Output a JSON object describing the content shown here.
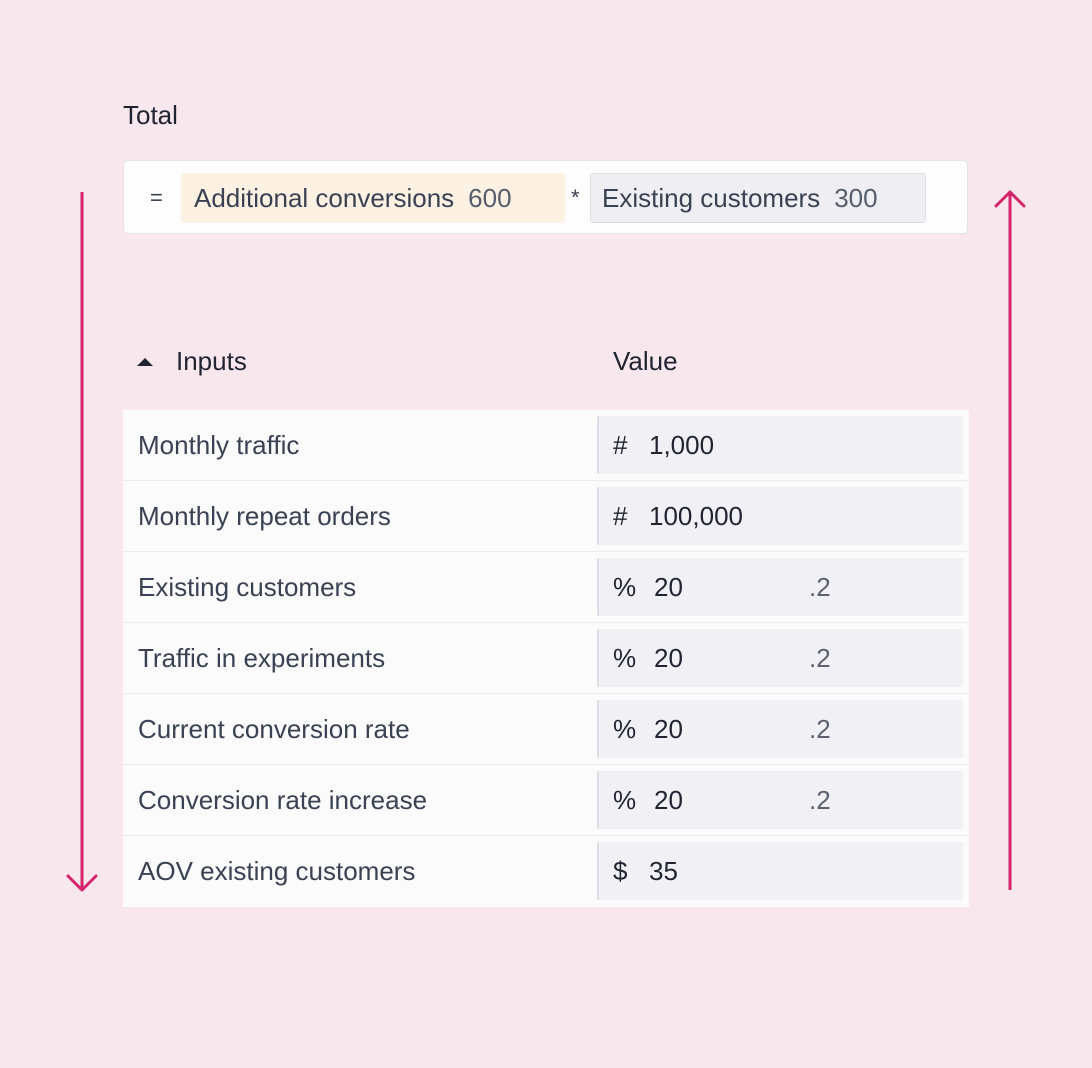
{
  "total": {
    "title": "Total",
    "equals_symbol": "=",
    "operator_symbol": "*",
    "tokens": [
      {
        "label": "Additional conversions",
        "value": "600"
      },
      {
        "label": "Existing customers",
        "value": "300"
      }
    ]
  },
  "inputs": {
    "header_label": "Inputs",
    "value_header": "Value",
    "rows": [
      {
        "label": "Monthly traffic",
        "prefix": "#",
        "value": "1,000",
        "suffix": ""
      },
      {
        "label": "Monthly repeat orders",
        "prefix": "#",
        "value": "100,000",
        "suffix": ""
      },
      {
        "label": "Existing customers",
        "prefix": "%",
        "value": "20",
        "suffix": ".2"
      },
      {
        "label": "Traffic in experiments",
        "prefix": "%",
        "value": "20",
        "suffix": ".2"
      },
      {
        "label": "Current conversion rate",
        "prefix": "%",
        "value": "20",
        "suffix": ".2"
      },
      {
        "label": "Conversion rate increase",
        "prefix": "%",
        "value": "20",
        "suffix": ".2"
      },
      {
        "label": "AOV existing customers",
        "prefix": "$",
        "value": "35",
        "suffix": ""
      }
    ]
  },
  "colors": {
    "background": "#f9e7ee",
    "arrow": "#d4246c",
    "token_orange": "#fdf1e4",
    "token_grey": "#eeeef3"
  },
  "icons": {
    "collapse": "caret-up-icon",
    "left_arrow": "arrow-down-icon",
    "right_arrow": "arrow-up-icon"
  }
}
